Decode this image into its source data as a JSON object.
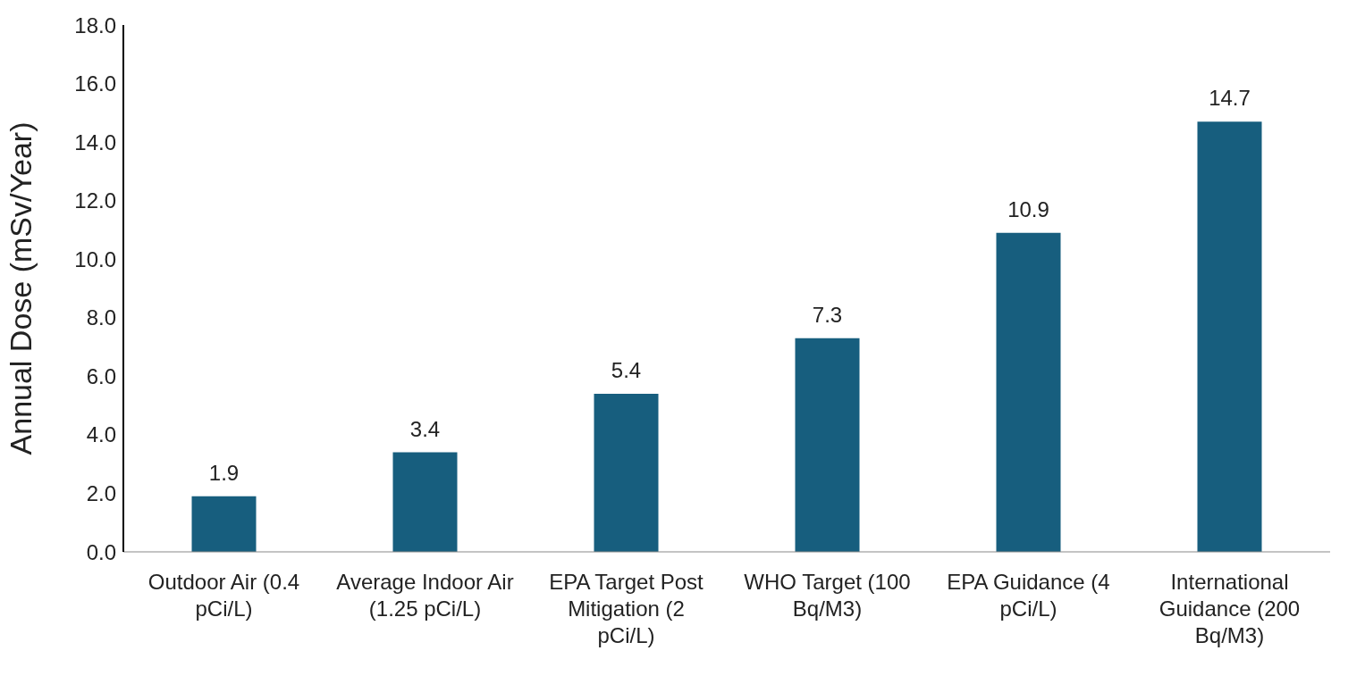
{
  "chart_data": {
    "type": "bar",
    "categories": [
      "Outdoor Air (0.4 pCi/L)",
      "Average Indoor Air (1.25 pCi/L)",
      "EPA Target Post Mitigation (2 pCi/L)",
      "WHO Target (100 Bq/M3)",
      "EPA Guidance (4 pCi/L)",
      "International Guidance (200 Bq/M3)"
    ],
    "values": [
      1.9,
      3.4,
      5.4,
      7.3,
      10.9,
      14.7
    ],
    "color": "#175e7e",
    "ylabel": "Annual Dose (mSv/Year)",
    "ylim": [
      0,
      18
    ],
    "yticks": [
      {
        "value": 0,
        "label": "0.0"
      },
      {
        "value": 2,
        "label": "2.0"
      },
      {
        "value": 4,
        "label": "4.0"
      },
      {
        "value": 6,
        "label": "6.0"
      },
      {
        "value": 8,
        "label": "8.0"
      },
      {
        "value": 10,
        "label": "10.0"
      },
      {
        "value": 12,
        "label": "12.0"
      },
      {
        "value": 14,
        "label": "14.0"
      },
      {
        "value": 16,
        "label": "16.0"
      },
      {
        "value": 18,
        "label": "18.0"
      }
    ],
    "data_labels": true,
    "grid": false,
    "legend": false
  }
}
